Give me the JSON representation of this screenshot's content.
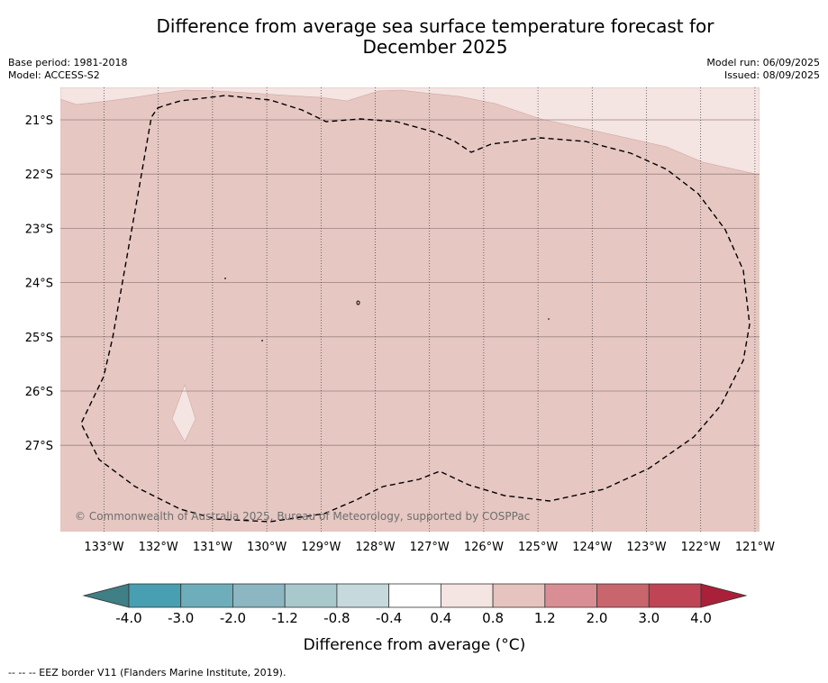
{
  "title": "Difference from average sea surface temperature forecast for December 2025",
  "base_period": "Base period: 1981-2018",
  "model": "Model: ACCESS-S2",
  "model_run": "Model run: 06/09/2025",
  "issued": "Issued: 08/09/2025",
  "copyright": "© Commonwealth of Australia 2025, Bureau of Meteorology, supported by COSPPac",
  "lat_labels": [
    "21°S",
    "22°S",
    "23°S",
    "24°S",
    "25°S",
    "26°S",
    "27°S"
  ],
  "lon_labels": [
    "133°W",
    "132°W",
    "131°W",
    "130°W",
    "129°W",
    "128°W",
    "127°W",
    "126°W",
    "125°W",
    "124°W",
    "123°W",
    "122°W",
    "121°W"
  ],
  "colorbar": {
    "title": "Difference from average (°C)",
    "tick_labels": [
      "-4.0",
      "-3.0",
      "-2.0",
      "-1.2",
      "-0.8",
      "-0.4",
      "0.4",
      "0.8",
      "1.2",
      "2.0",
      "3.0",
      "4.0"
    ],
    "colors": [
      "#3f7f86",
      "#479fb1",
      "#6eaebb",
      "#8bb6c2",
      "#a8c8cc",
      "#c6d9dc",
      "#ffffff",
      "#f4e4e2",
      "#e6c3bf",
      "#d88e94",
      "#c9656d",
      "#bf4556",
      "#a92039"
    ]
  },
  "map_colors": {
    "main_fill": "#e6c7c2",
    "light_fill": "#f4e4e2"
  },
  "footnote": "--  --  -- EEZ border V11 (Flanders Marine Institute, 2019)."
}
